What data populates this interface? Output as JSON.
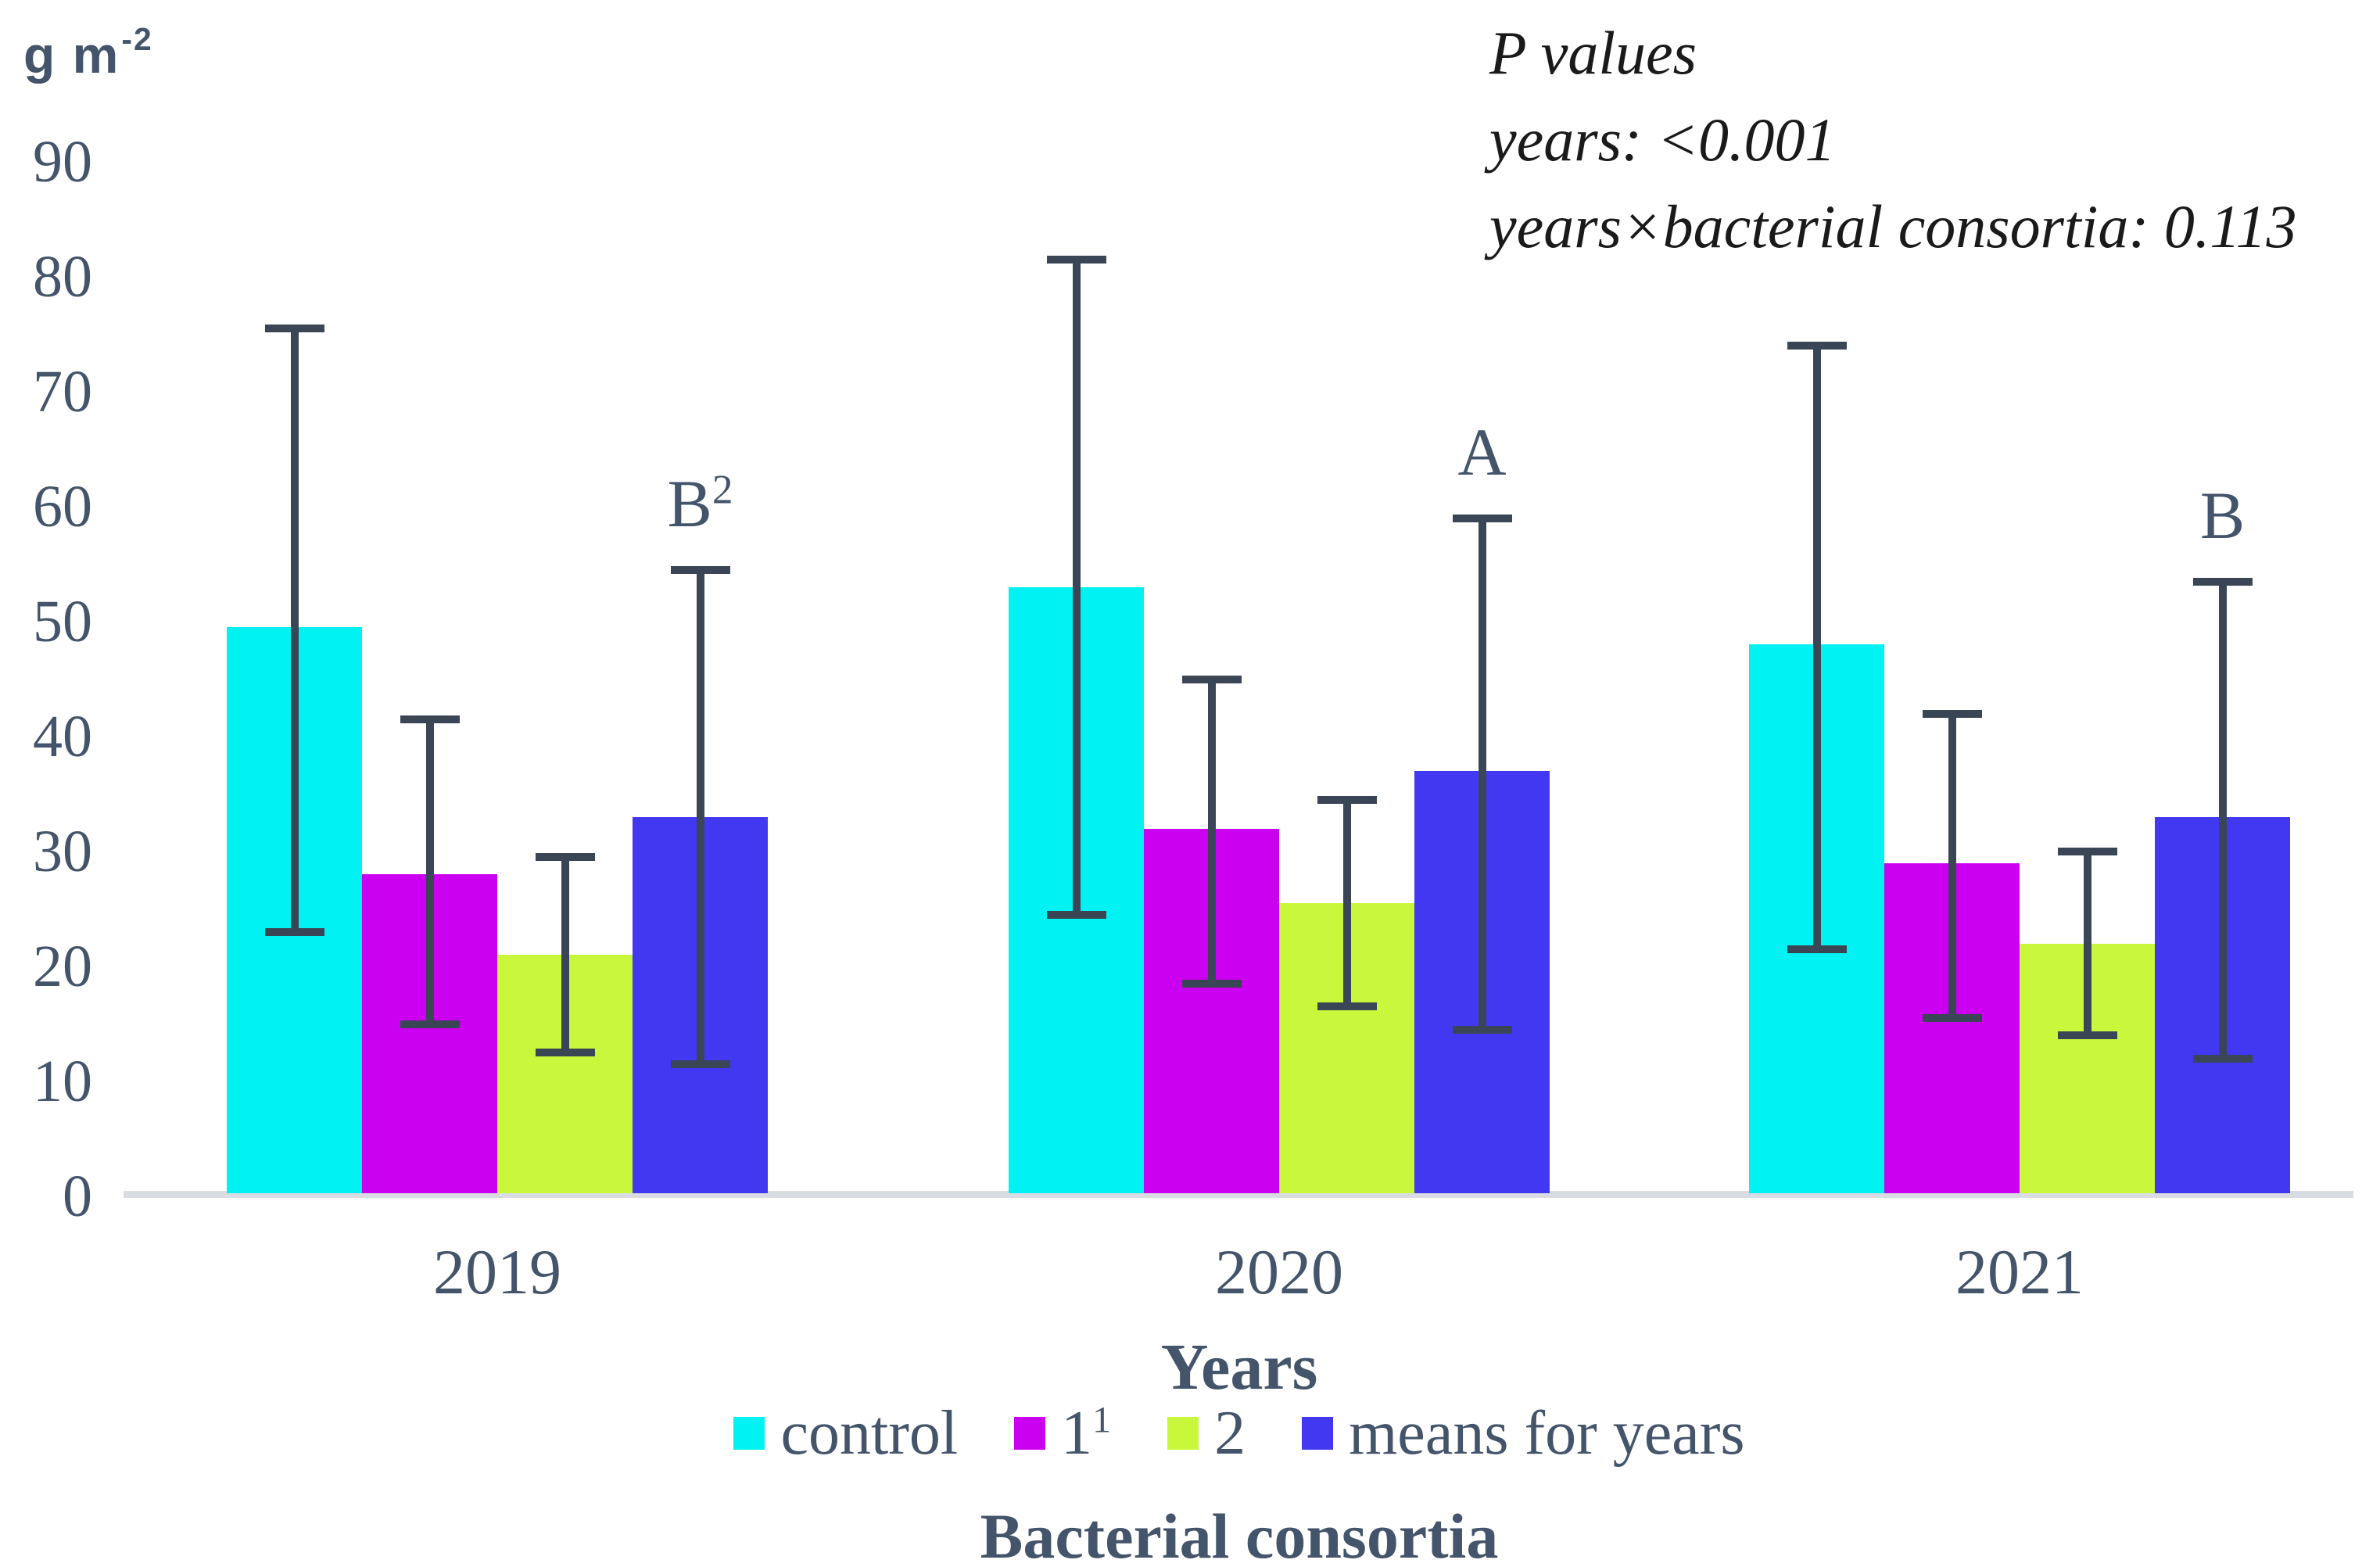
{
  "chart_data": {
    "type": "bar",
    "title": "",
    "unit_label": {
      "text": "g m",
      "sup": "-2"
    },
    "xlabel": "Years",
    "legend_title": "Bacterial consortia",
    "legend_position": "bottom",
    "grid": false,
    "categories": [
      "2019",
      "2020",
      "2021"
    ],
    "ylim": [
      0,
      90
    ],
    "yticks": [
      0,
      10,
      20,
      30,
      40,
      50,
      60,
      70,
      80,
      90
    ],
    "series": [
      {
        "name": "control",
        "sup": "",
        "color": "#00F2F2",
        "values": [
          49.5,
          53,
          48
        ],
        "err_low": [
          23,
          24.5,
          21.5
        ],
        "err_high": [
          75.5,
          81.5,
          74
        ]
      },
      {
        "name": "1",
        "sup": "1",
        "color": "#CC00F0",
        "values": [
          28,
          32,
          29
        ],
        "err_low": [
          15,
          18.5,
          15.5
        ],
        "err_high": [
          41.5,
          45,
          42
        ]
      },
      {
        "name": "2",
        "sup": "",
        "color": "#C9F73B",
        "values": [
          21,
          25.5,
          22
        ],
        "err_low": [
          12.5,
          16.5,
          14
        ],
        "err_high": [
          29.5,
          34.5,
          30
        ]
      },
      {
        "name": "means for years",
        "sup": "",
        "color": "#4338F2",
        "values": [
          33,
          37,
          33
        ],
        "err_low": [
          11.5,
          14.5,
          12
        ],
        "err_high": [
          54.5,
          59,
          53.5
        ]
      }
    ],
    "significance_letters": [
      {
        "text": "B",
        "sup": "2"
      },
      {
        "text": "A",
        "sup": ""
      },
      {
        "text": "B",
        "sup": ""
      }
    ],
    "p_values": {
      "title": "P values",
      "line_years": "years: <0.001",
      "line_interaction": "years×bacterial consortia: 0.113"
    },
    "colors": {
      "error_bar": "#3A4656",
      "text": "#44546A",
      "baseline": "#D9DDE3",
      "background": "#FFFFFF"
    }
  }
}
